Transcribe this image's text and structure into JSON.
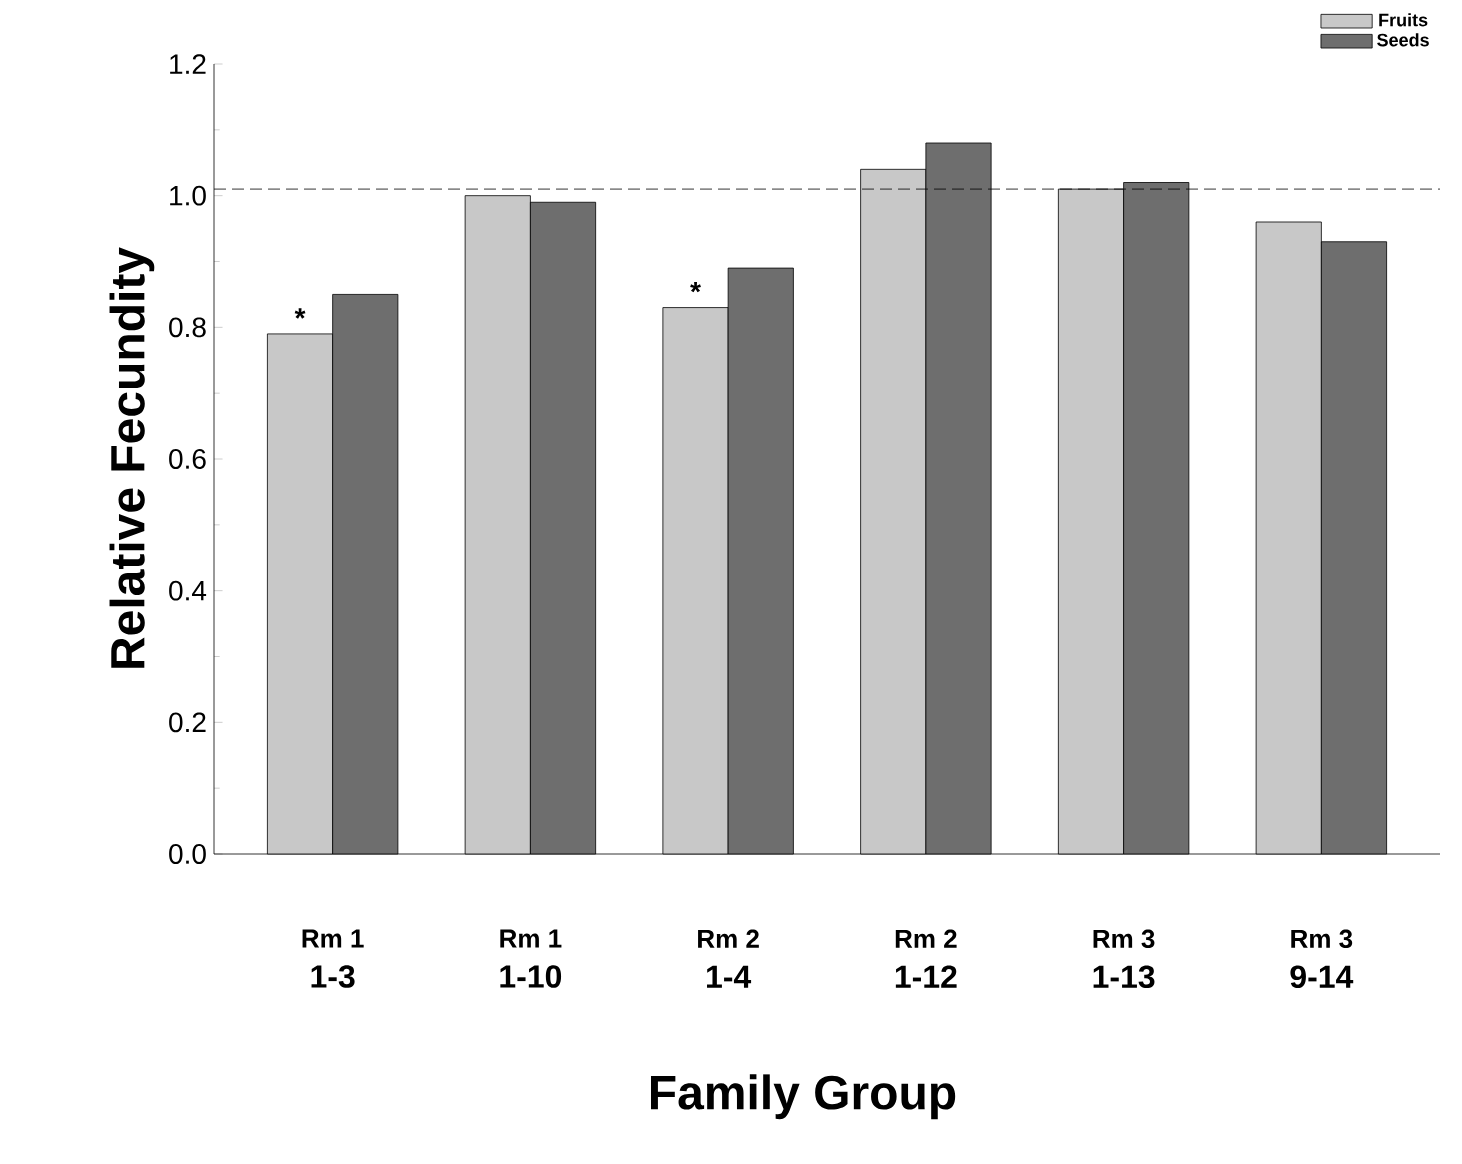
{
  "chart_data": {
    "type": "bar",
    "xlabel": "Family Group",
    "ylabel": "Relative Fecundity",
    "categories": [
      "Rm 1 1-3",
      "Rm 1 1-10",
      "Rm 2 1-4",
      "Rm 2 1-12",
      "Rm 3 1-13",
      "Rm 3 9-14"
    ],
    "series": [
      {
        "name": "Fruits",
        "color": "#c8c8c8",
        "values": [
          0.79,
          1.0,
          0.83,
          1.04,
          1.01,
          0.96
        ]
      },
      {
        "name": "Seeds",
        "color": "#6e6e6e",
        "values": [
          0.85,
          0.99,
          0.89,
          1.08,
          1.02,
          0.93
        ]
      }
    ],
    "ylim": [
      0,
      1.2
    ],
    "yticks": [
      {
        "value": 0,
        "label": "0.0"
      },
      {
        "value": 0.2,
        "label": "0.2"
      },
      {
        "value": 0.4,
        "label": "0.4"
      },
      {
        "value": 0.6,
        "label": "0.6"
      },
      {
        "value": 0.8,
        "label": "0.8"
      },
      {
        "value": 1.0,
        "label": "1.0"
      },
      {
        "value": 1.2,
        "label": "1.2"
      }
    ],
    "ref_lines": [
      {
        "axis": "y",
        "value": 1.01,
        "line_style": "dashed"
      }
    ],
    "annotations": [
      {
        "text": "*",
        "x": "Rm 1 1-3",
        "y": 0.79
      },
      {
        "text": "*",
        "x": "Rm 2 1-4",
        "y": 0.83
      }
    ],
    "grid": false,
    "legend": "top right"
  }
}
